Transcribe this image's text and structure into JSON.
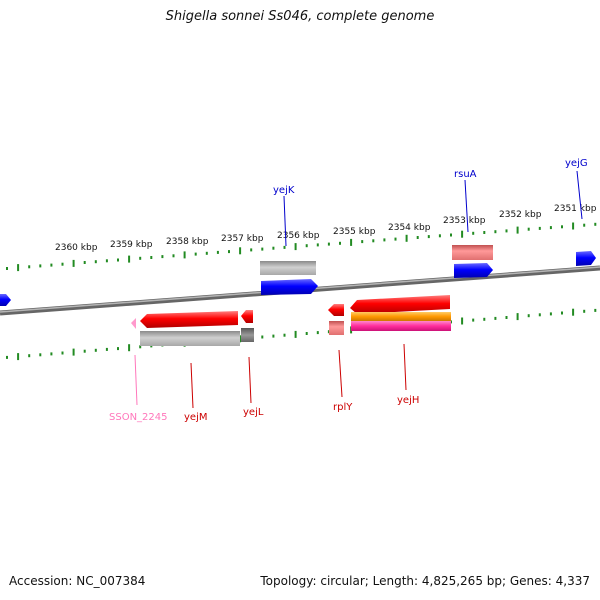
{
  "title": "Shigella sonnei Ss046, complete genome",
  "footer": {
    "accession": "Accession: NC_007384",
    "topology": "Topology: circular; Length: 4,825,265 bp; Genes: 4,337"
  },
  "colors": {
    "backbone": "#888888",
    "ticks": "#228b22",
    "forward_gene": "#0000ff",
    "reverse_gene": "#ff0000",
    "reverse_rrna": "#ff9999",
    "label_blue": "#0000cc",
    "label_red": "#cc0000",
    "label_pink": "#ff77bb",
    "gray_feature": "#b0b0b0",
    "orange_feature": "#ff9900",
    "magenta_feature": "#ff2d9b"
  },
  "scale_labels": [
    "2360 kbp",
    "2359 kbp",
    "2358 kbp",
    "2357 kbp",
    "2356 kbp",
    "2355 kbp",
    "2354 kbp",
    "2353 kbp",
    "2352 kbp",
    "2351 kbp"
  ],
  "genes": [
    {
      "name": "yejG",
      "strand": "forward"
    },
    {
      "name": "rsuA",
      "strand": "forward"
    },
    {
      "name": "yejK",
      "strand": "forward"
    },
    {
      "name": "SSON_2245",
      "strand": "reverse"
    },
    {
      "name": "yejM",
      "strand": "reverse"
    },
    {
      "name": "yejL",
      "strand": "reverse"
    },
    {
      "name": "rplY",
      "strand": "reverse"
    },
    {
      "name": "yejH",
      "strand": "reverse"
    }
  ]
}
